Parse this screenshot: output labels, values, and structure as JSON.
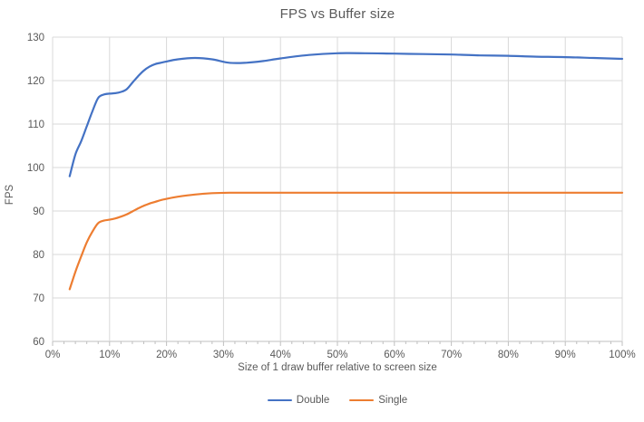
{
  "colors": {
    "series_double": "#4472C4",
    "series_single": "#ED7D31",
    "gridline": "#D9D9D9",
    "axis_line": "#BFBFBF",
    "text": "#595959",
    "background": "#FFFFFF"
  },
  "chart_data": {
    "type": "line",
    "title": "FPS vs Buffer size",
    "xlabel": "Size of 1 draw buffer relative to screen size",
    "ylabel": "FPS",
    "xlim": [
      0,
      100
    ],
    "ylim": [
      60,
      130
    ],
    "grid": true,
    "legend_position": "bottom-center",
    "x_axis": {
      "major_tick_values": [
        0,
        10,
        20,
        30,
        40,
        50,
        60,
        70,
        80,
        90,
        100
      ],
      "major_tick_labels": [
        "0%",
        "10%",
        "20%",
        "30%",
        "40%",
        "50%",
        "60%",
        "70%",
        "80%",
        "90%",
        "100%"
      ],
      "minor_tick_step": 2
    },
    "y_axis": {
      "tick_values": [
        60,
        70,
        80,
        90,
        100,
        110,
        120,
        130
      ],
      "tick_labels": [
        "60",
        "70",
        "80",
        "90",
        "100",
        "110",
        "120",
        "130"
      ]
    },
    "series": [
      {
        "name": "Double",
        "color": "#4472C4",
        "points": [
          [
            3,
            98
          ],
          [
            4,
            103
          ],
          [
            5,
            106
          ],
          [
            6,
            109.5
          ],
          [
            7,
            113
          ],
          [
            8,
            116
          ],
          [
            9,
            116.8
          ],
          [
            10,
            117
          ],
          [
            11,
            117.1
          ],
          [
            12,
            117.4
          ],
          [
            13,
            118
          ],
          [
            14,
            119.5
          ],
          [
            15,
            121
          ],
          [
            16,
            122.3
          ],
          [
            17,
            123.2
          ],
          [
            18,
            123.8
          ],
          [
            19,
            124.1
          ],
          [
            20,
            124.4
          ],
          [
            22,
            124.9
          ],
          [
            25,
            125.2
          ],
          [
            28,
            124.9
          ],
          [
            31,
            124.1
          ],
          [
            34,
            124.1
          ],
          [
            37,
            124.5
          ],
          [
            40,
            125.1
          ],
          [
            45,
            125.9
          ],
          [
            50,
            126.3
          ],
          [
            55,
            126.3
          ],
          [
            60,
            126.2
          ],
          [
            65,
            126.1
          ],
          [
            70,
            126
          ],
          [
            75,
            125.8
          ],
          [
            80,
            125.7
          ],
          [
            85,
            125.5
          ],
          [
            90,
            125.4
          ],
          [
            95,
            125.2
          ],
          [
            100,
            125
          ]
        ]
      },
      {
        "name": "Single",
        "color": "#ED7D31",
        "points": [
          [
            3,
            72
          ],
          [
            4,
            76
          ],
          [
            5,
            79.5
          ],
          [
            6,
            82.8
          ],
          [
            7,
            85.3
          ],
          [
            8,
            87.2
          ],
          [
            9,
            87.8
          ],
          [
            10,
            88
          ],
          [
            11,
            88.3
          ],
          [
            12,
            88.7
          ],
          [
            13,
            89.2
          ],
          [
            14,
            89.9
          ],
          [
            15,
            90.6
          ],
          [
            16,
            91.2
          ],
          [
            17,
            91.7
          ],
          [
            18,
            92.1
          ],
          [
            19,
            92.5
          ],
          [
            20,
            92.8
          ],
          [
            22,
            93.3
          ],
          [
            25,
            93.8
          ],
          [
            28,
            94.1
          ],
          [
            31,
            94.2
          ],
          [
            35,
            94.2
          ],
          [
            40,
            94.2
          ],
          [
            45,
            94.2
          ],
          [
            50,
            94.2
          ],
          [
            55,
            94.2
          ],
          [
            60,
            94.2
          ],
          [
            65,
            94.2
          ],
          [
            70,
            94.2
          ],
          [
            75,
            94.2
          ],
          [
            80,
            94.2
          ],
          [
            85,
            94.2
          ],
          [
            90,
            94.2
          ],
          [
            95,
            94.2
          ],
          [
            100,
            94.2
          ]
        ]
      }
    ]
  }
}
